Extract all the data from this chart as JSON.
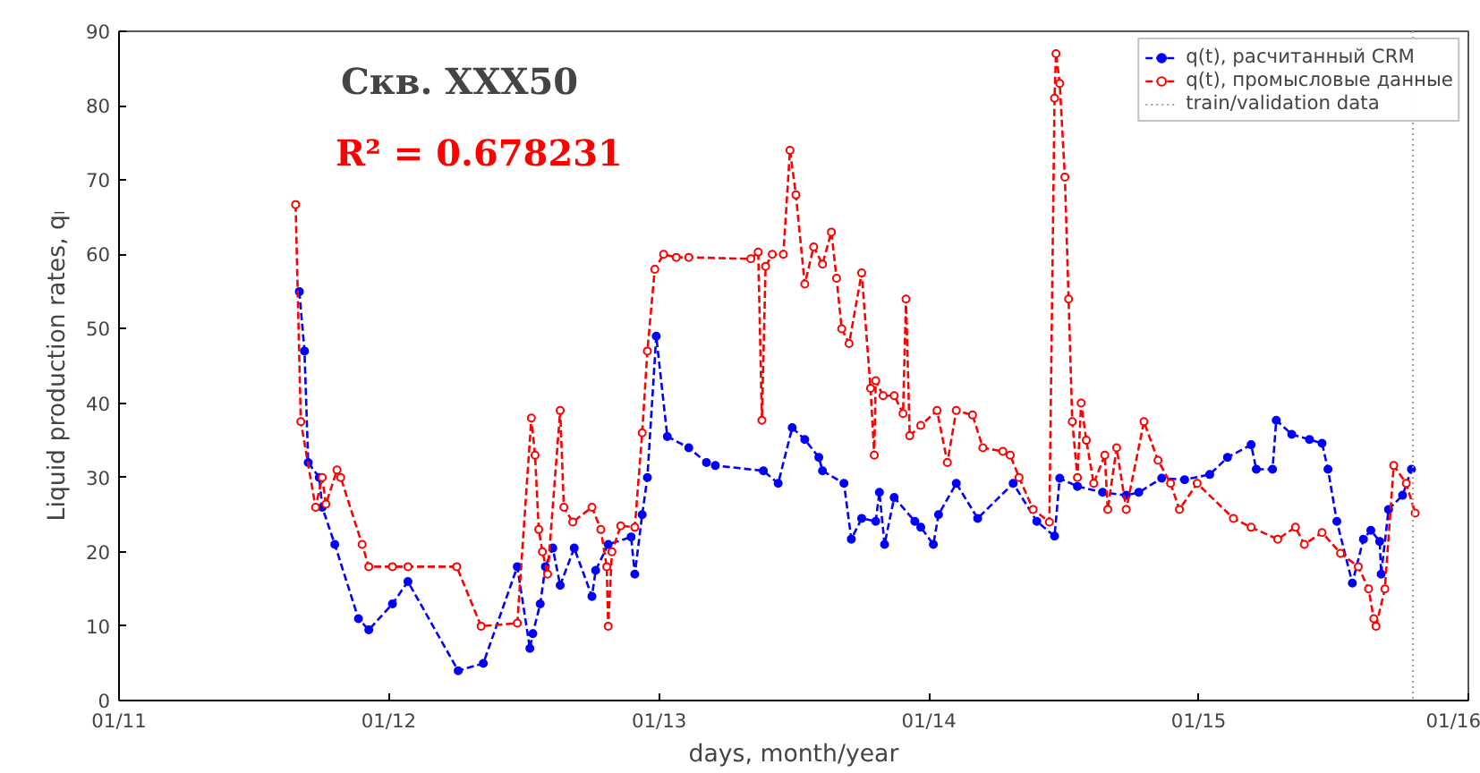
{
  "chart_data": {
    "type": "line",
    "title": "Скв. XXX50",
    "annotations": [
      "R² = 0.678231"
    ],
    "xlabel": "days, month/year",
    "ylabel": "Liquid production rates, qₗ",
    "xlim": [
      "2011-01-01",
      "2016-01-01"
    ],
    "xticks": [
      {
        "value": "2011-01-01",
        "label": "01/11"
      },
      {
        "value": "2012-01-01",
        "label": "01/12"
      },
      {
        "value": "2013-01-01",
        "label": "01/13"
      },
      {
        "value": "2014-01-01",
        "label": "01/14"
      },
      {
        "value": "2015-01-01",
        "label": "01/15"
      },
      {
        "value": "2016-01-01",
        "label": "01/16"
      }
    ],
    "ylim": [
      0,
      90
    ],
    "yticks": [
      0,
      10,
      20,
      30,
      40,
      50,
      60,
      70,
      80,
      90
    ],
    "grid": false,
    "legend": "top right",
    "line_style": "dashed",
    "marker": "circle",
    "ref_lines": [
      {
        "axis": "x",
        "value": "2015-10-18",
        "label": "train/validation data",
        "color": "#a0a0a0",
        "line_style": "dotted"
      }
    ],
    "series": [
      {
        "name": "q(t), расчитанный CRM",
        "color": "#0000ff",
        "x": [
          "2011-09-02",
          "2011-09-09",
          "2011-09-14",
          "2011-09-29",
          "2011-10-03",
          "2011-10-20",
          "2011-11-21",
          "2011-12-05",
          "2012-01-06",
          "2012-01-27",
          "2012-04-04",
          "2012-05-08",
          "2012-06-23",
          "2012-07-10",
          "2012-07-14",
          "2012-07-24",
          "2012-07-31",
          "2012-08-10",
          "2012-08-20",
          "2012-09-08",
          "2012-10-02",
          "2012-10-07",
          "2012-10-24",
          "2012-11-24",
          "2012-11-29",
          "2012-12-09",
          "2012-12-16",
          "2012-12-28",
          "2013-01-12",
          "2013-02-10",
          "2013-03-06",
          "2013-03-18",
          "2013-05-22",
          "2013-06-11",
          "2013-06-30",
          "2013-07-17",
          "2013-08-05",
          "2013-08-10",
          "2013-09-08",
          "2013-09-18",
          "2013-10-02",
          "2013-10-21",
          "2013-10-26",
          "2013-11-02",
          "2013-11-15",
          "2013-12-13",
          "2013-12-21",
          "2014-01-07",
          "2014-01-14",
          "2014-02-07",
          "2014-03-08",
          "2014-04-25",
          "2014-05-27",
          "2014-06-20",
          "2014-06-27",
          "2014-07-21",
          "2014-08-24",
          "2014-09-25",
          "2014-10-12",
          "2014-11-12",
          "2014-12-13",
          "2015-01-16",
          "2015-02-09",
          "2015-03-13",
          "2015-03-20",
          "2015-04-11",
          "2015-04-16",
          "2015-05-07",
          "2015-05-31",
          "2015-06-17",
          "2015-06-25",
          "2015-07-07",
          "2015-07-28",
          "2015-08-12",
          "2015-08-22",
          "2015-09-03",
          "2015-09-05",
          "2015-09-15",
          "2015-10-04",
          "2015-10-16"
        ],
        "values": [
          55,
          47,
          32,
          30,
          26,
          21,
          11,
          9.5,
          13,
          16,
          4,
          5,
          18,
          7,
          9,
          13,
          18,
          20.5,
          15.5,
          20.5,
          14,
          17.5,
          21,
          22,
          17,
          25,
          30,
          49,
          35.5,
          34,
          32,
          31.6,
          30.9,
          29.2,
          36.7,
          35.1,
          32.7,
          30.9,
          29.2,
          21.7,
          24.5,
          24.1,
          28,
          21,
          27.3,
          24.1,
          23.3,
          21,
          25,
          29.2,
          24.5,
          29.2,
          24.1,
          22.1,
          29.9,
          28.8,
          28,
          27.6,
          28,
          29.9,
          29.7,
          30.4,
          32.7,
          34.4,
          31.1,
          31.1,
          37.7,
          35.8,
          35.1,
          34.6,
          31.1,
          24.1,
          15.8,
          21.7,
          22.9,
          21.4,
          17,
          25.7,
          27.6,
          31.1
        ]
      },
      {
        "name": "q(t), промысловые данные",
        "color": "#ff0000",
        "x": [
          "2011-08-28",
          "2011-09-04",
          "2011-09-24",
          "2011-10-03",
          "2011-10-08",
          "2011-10-23",
          "2011-10-28",
          "2011-11-26",
          "2011-12-05",
          "2012-01-06",
          "2012-01-27",
          "2012-04-02",
          "2012-05-05",
          "2012-06-23",
          "2012-07-12",
          "2012-07-17",
          "2012-07-22",
          "2012-07-27",
          "2012-08-03",
          "2012-08-20",
          "2012-08-25",
          "2012-09-06",
          "2012-10-02",
          "2012-10-14",
          "2012-10-22",
          "2012-10-24",
          "2012-10-29",
          "2012-11-10",
          "2012-11-29",
          "2012-12-09",
          "2012-12-16",
          "2012-12-26",
          "2013-01-07",
          "2013-01-24",
          "2013-02-10",
          "2013-05-05",
          "2013-05-15",
          "2013-05-20",
          "2013-05-25",
          "2013-06-03",
          "2013-06-18",
          "2013-06-27",
          "2013-07-05",
          "2013-07-17",
          "2013-07-29",
          "2013-08-10",
          "2013-08-22",
          "2013-08-29",
          "2013-09-05",
          "2013-09-15",
          "2013-10-02",
          "2013-10-14",
          "2013-10-19",
          "2013-10-21",
          "2013-10-31",
          "2013-11-15",
          "2013-11-27",
          "2013-12-01",
          "2013-12-06",
          "2013-12-21",
          "2014-01-12",
          "2014-01-26",
          "2014-02-07",
          "2014-03-01",
          "2014-03-15",
          "2014-04-11",
          "2014-04-21",
          "2014-05-03",
          "2014-05-22",
          "2014-06-13",
          "2014-06-20",
          "2014-06-22",
          "2014-06-27",
          "2014-07-04",
          "2014-07-09",
          "2014-07-14",
          "2014-07-21",
          "2014-07-26",
          "2014-08-02",
          "2014-08-12",
          "2014-08-27",
          "2014-08-31",
          "2014-09-12",
          "2014-09-25",
          "2014-10-19",
          "2014-11-07",
          "2014-11-24",
          "2014-12-06",
          "2014-12-30",
          "2015-02-17",
          "2015-03-13",
          "2015-04-18",
          "2015-05-12",
          "2015-05-24",
          "2015-06-17",
          "2015-07-12",
          "2015-08-05",
          "2015-08-19",
          "2015-08-26",
          "2015-08-29",
          "2015-09-10",
          "2015-09-22",
          "2015-10-09",
          "2015-10-21"
        ],
        "values": [
          66.7,
          37.5,
          26,
          30,
          26.4,
          31,
          30,
          21,
          18,
          18,
          18,
          18,
          10,
          10.4,
          38,
          33,
          23,
          20,
          17,
          39,
          26,
          24,
          26,
          23,
          18,
          10,
          20,
          23.5,
          23.3,
          36,
          47,
          58,
          60,
          59.6,
          59.6,
          59.4,
          60.3,
          37.7,
          58.4,
          60,
          60,
          74,
          68,
          56,
          61,
          58.7,
          63,
          56.8,
          50,
          48,
          57.5,
          42,
          33,
          43,
          41,
          41,
          38.6,
          54,
          35.6,
          37,
          39,
          32,
          39,
          38.4,
          34,
          33.5,
          33,
          30,
          25.7,
          24,
          81,
          87,
          83,
          70.4,
          54,
          37.5,
          30,
          40,
          35,
          29.2,
          33,
          25.7,
          34,
          25.7,
          37.5,
          32.3,
          29.2,
          25.7,
          29.2,
          24.5,
          23.3,
          21.7,
          23.3,
          21,
          22.6,
          19.8,
          18,
          15,
          11,
          10,
          15,
          31.6,
          29.2,
          25.2
        ]
      }
    ]
  }
}
